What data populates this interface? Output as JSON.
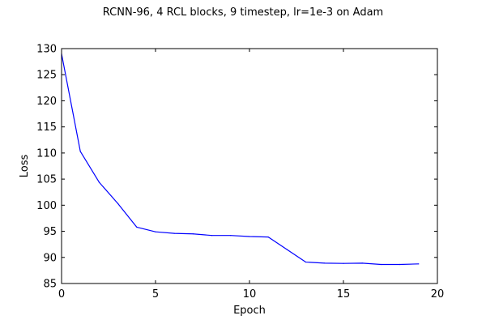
{
  "chart_data": {
    "type": "line",
    "title": "RCNN-96, 4 RCL blocks, 9 timestep, lr=1e-3 on Adam",
    "xlabel": "Epoch",
    "ylabel": "Loss",
    "xlim": [
      0,
      20
    ],
    "ylim": [
      85,
      130
    ],
    "xticks": [
      0,
      5,
      10,
      15,
      20
    ],
    "yticks": [
      85,
      90,
      95,
      100,
      105,
      110,
      115,
      120,
      125,
      130
    ],
    "grid": false,
    "legend": "none",
    "series": [
      {
        "color": "#0000ff",
        "x": [
          0,
          1,
          2,
          3,
          4,
          5,
          6,
          7,
          8,
          9,
          10,
          11,
          12,
          13,
          14,
          15,
          16,
          17,
          18,
          19
        ],
        "y": [
          129.0,
          110.3,
          104.4,
          100.3,
          95.8,
          94.9,
          94.6,
          94.5,
          94.2,
          94.2,
          94.0,
          93.9,
          91.5,
          89.1,
          88.9,
          88.85,
          88.9,
          88.65,
          88.65,
          88.75
        ]
      }
    ]
  }
}
